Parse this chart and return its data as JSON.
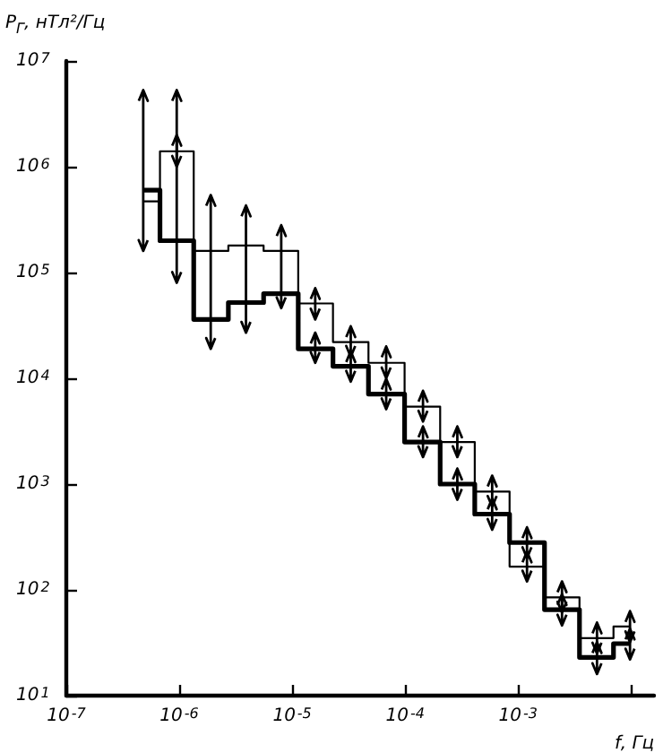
{
  "chart_data": {
    "type": "step",
    "ylabel": "P$_{Г}$, нТл²/Гц",
    "xlabel": "f, Гц",
    "log": "xy",
    "x": [
      4.8e-07,
      9.5e-07,
      1.9e-06,
      3.9e-06,
      8e-06,
      1.6e-05,
      3.3e-05,
      6.8e-05,
      0.000144,
      0.00029,
      0.00059,
      0.0012,
      0.00245,
      0.005,
      0.0098
    ],
    "series": [
      {
        "color": "#000000",
        "values": [
          470000.0,
          1400000.0,
          160000.0,
          180000.0,
          160000.0,
          51000.0,
          22000.0,
          14000.0,
          5400.0,
          2500.0,
          850,
          166,
          85,
          35,
          45
        ],
        "errors": [
          null,
          [
            1000000.0,
            2000000.0
          ],
          [
            19000.0,
            540000.0
          ],
          [
            27000.0,
            430000.0
          ],
          [
            46000.0,
            280000.0
          ],
          [
            36000.0,
            71000.0
          ],
          [
            16000.0,
            31000.0
          ],
          [
            10000.0,
            20000.0
          ],
          [
            3900.0,
            7600.0
          ],
          [
            1800.0,
            3500.0
          ],
          [
            610,
            1200
          ],
          [
            120,
            230
          ],
          [
            61,
            120
          ],
          [
            25,
            49
          ],
          [
            32,
            63
          ]
        ]
      },
      {
        "color": "#000000",
        "values": [
          600000.0,
          200000.0,
          36000.0,
          52000.0,
          63000.0,
          19000.0,
          13000.0,
          7100.0,
          2500.0,
          1000.0,
          520,
          280,
          65,
          23,
          31
        ],
        "errors": [
          [
            160000.0,
            5300000.0
          ],
          [
            80000.0,
            5300000.0
          ],
          null,
          null,
          null,
          [
            14000.0,
            27000.0
          ],
          [
            9300.0,
            18000.0
          ],
          [
            5100.0,
            9900.0
          ],
          [
            1800.0,
            3500.0
          ],
          [
            710,
            1400
          ],
          [
            370,
            730
          ],
          [
            200,
            390
          ],
          [
            46,
            91
          ],
          [
            16,
            32
          ],
          [
            22,
            43
          ]
        ]
      }
    ],
    "xlim": [
      1e-07,
      0.016
    ],
    "xticks": [
      {
        "value": 1e-07,
        "label": "10$^{-7}$"
      },
      {
        "value": 1e-06,
        "label": "10$^{-6}$"
      },
      {
        "value": 1e-05,
        "label": "10$^{-5}$"
      },
      {
        "value": 0.0001,
        "label": "10$^{-4}$"
      },
      {
        "value": 0.001,
        "label": "10$^{-3}$"
      },
      {
        "value": 0.01,
        "label": null
      }
    ],
    "ylim": [
      10,
      10000000.0
    ],
    "yticks": [
      {
        "value": 10,
        "label": "10$^{1}$"
      },
      {
        "value": 100,
        "label": "10$^{2}$"
      },
      {
        "value": 1000,
        "label": "10$^{3}$"
      },
      {
        "value": 10000.0,
        "label": "10$^{4}$"
      },
      {
        "value": 100000.0,
        "label": "10$^{5}$"
      },
      {
        "value": 1000000.0,
        "label": "10$^{6}$"
      },
      {
        "value": 10000000.0,
        "label": "10$^{7}$"
      }
    ],
    "grid": false,
    "legend": false
  }
}
